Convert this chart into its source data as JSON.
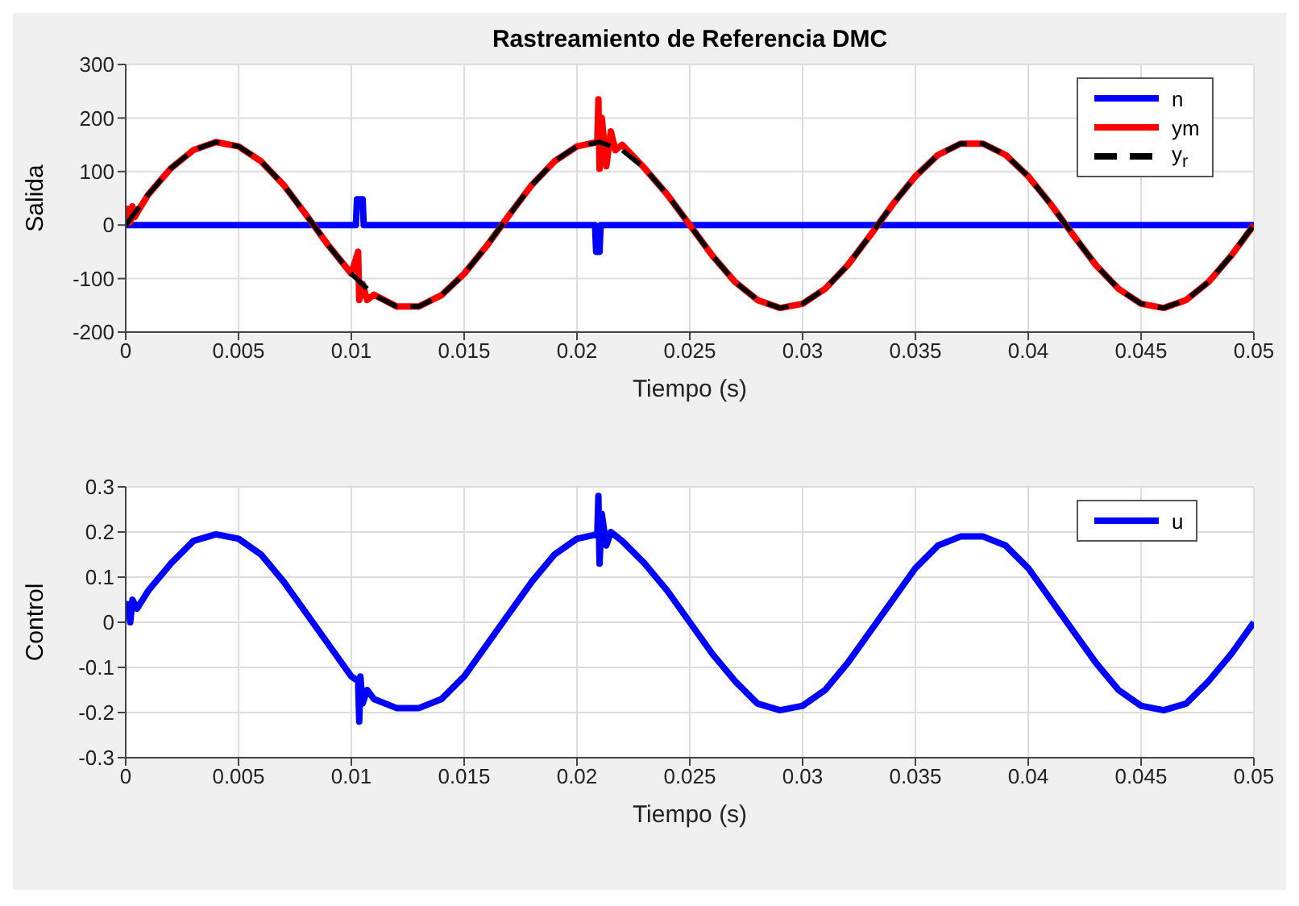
{
  "chart_data": [
    {
      "type": "line",
      "title": "Rastreamiento de Referencia DMC",
      "xlabel": "Tiempo (s)",
      "ylabel": "Salida",
      "xlim": [
        0,
        0.05
      ],
      "xticks": [
        0,
        0.005,
        0.01,
        0.015,
        0.02,
        0.025,
        0.03,
        0.035,
        0.04,
        0.045,
        0.05
      ],
      "ylim": [
        -200,
        300
      ],
      "yticks": [
        -200,
        -100,
        0,
        100,
        200,
        300
      ],
      "grid": true,
      "legend": "top right",
      "marker": "none",
      "series": [
        {
          "name": "n",
          "color": "#0000ff",
          "line_style": "solid",
          "x": [
            0,
            0.0102,
            0.01025,
            0.0105,
            0.01055,
            0.0208,
            0.02085,
            0.021,
            0.02105,
            0.05
          ],
          "values": [
            0,
            0,
            48,
            48,
            0,
            0,
            -50,
            -50,
            0,
            0
          ]
        },
        {
          "name": "ym",
          "color": "#ff0000",
          "line_style": "solid",
          "x": [
            0,
            0.0001,
            0.0002,
            0.0003,
            0.0004,
            0.0006,
            0.001,
            0.002,
            0.003,
            0.004,
            0.005,
            0.006,
            0.007,
            0.008,
            0.009,
            0.01,
            0.0103,
            0.01035,
            0.0105,
            0.0107,
            0.011,
            0.012,
            0.013,
            0.014,
            0.015,
            0.016,
            0.017,
            0.018,
            0.019,
            0.02,
            0.0209,
            0.02095,
            0.021,
            0.0211,
            0.0213,
            0.0215,
            0.0217,
            0.022,
            0.023,
            0.024,
            0.025,
            0.026,
            0.027,
            0.028,
            0.029,
            0.03,
            0.031,
            0.032,
            0.033,
            0.034,
            0.035,
            0.036,
            0.037,
            0.038,
            0.039,
            0.04,
            0.041,
            0.042,
            0.043,
            0.044,
            0.045,
            0.046,
            0.047,
            0.048,
            0.049,
            0.05
          ],
          "values": [
            0,
            30,
            5,
            35,
            15,
            30,
            57,
            106,
            140,
            155,
            147,
            119,
            75,
            19,
            -39,
            -91,
            -50,
            -140,
            -110,
            -140,
            -130,
            -152,
            -152,
            -131,
            -91,
            -39,
            19,
            75,
            119,
            147,
            155,
            235,
            105,
            200,
            110,
            175,
            140,
            150,
            106,
            57,
            0,
            -57,
            -106,
            -140,
            -155,
            -147,
            -119,
            -75,
            -19,
            39,
            91,
            131,
            152,
            152,
            131,
            91,
            39,
            -19,
            -75,
            -119,
            -147,
            -155,
            -140,
            -106,
            -57,
            0
          ]
        },
        {
          "name": "y$_{r}$",
          "color": "#000000",
          "line_style": "dashed",
          "x": [
            0,
            0.001,
            0.002,
            0.003,
            0.004,
            0.005,
            0.006,
            0.007,
            0.008,
            0.009,
            0.01,
            0.011,
            0.012,
            0.013,
            0.014,
            0.015,
            0.016,
            0.017,
            0.018,
            0.019,
            0.02,
            0.021,
            0.022,
            0.023,
            0.024,
            0.025,
            0.026,
            0.027,
            0.028,
            0.029,
            0.03,
            0.031,
            0.032,
            0.033,
            0.034,
            0.035,
            0.036,
            0.037,
            0.038,
            0.039,
            0.04,
            0.041,
            0.042,
            0.043,
            0.044,
            0.045,
            0.046,
            0.047,
            0.048,
            0.049,
            0.05
          ],
          "values": [
            0,
            57,
            106,
            140,
            155,
            147,
            119,
            75,
            19,
            -39,
            -91,
            -131,
            -152,
            -152,
            -131,
            -91,
            -39,
            19,
            75,
            119,
            147,
            155,
            140,
            106,
            57,
            0,
            -57,
            -106,
            -140,
            -155,
            -147,
            -119,
            -75,
            -19,
            39,
            91,
            131,
            152,
            152,
            131,
            91,
            39,
            -19,
            -75,
            -119,
            -147,
            -155,
            -140,
            -106,
            -57,
            0
          ]
        }
      ]
    },
    {
      "type": "line",
      "xlabel": "Tiempo (s)",
      "ylabel": "Control",
      "xlim": [
        0,
        0.05
      ],
      "xticks": [
        0,
        0.005,
        0.01,
        0.015,
        0.02,
        0.025,
        0.03,
        0.035,
        0.04,
        0.045,
        0.05
      ],
      "ylim": [
        -0.3,
        0.3
      ],
      "yticks": [
        -0.3,
        -0.2,
        -0.1,
        0,
        0.1,
        0.2,
        0.3
      ],
      "grid": true,
      "legend": "top right",
      "marker": "none",
      "series": [
        {
          "name": "u",
          "color": "#0000ff",
          "line_style": "solid",
          "x": [
            0,
            0.0001,
            0.0002,
            0.0003,
            0.0005,
            0.001,
            0.002,
            0.003,
            0.004,
            0.005,
            0.006,
            0.007,
            0.008,
            0.009,
            0.01,
            0.0103,
            0.01035,
            0.0104,
            0.0105,
            0.0107,
            0.011,
            0.012,
            0.013,
            0.014,
            0.015,
            0.016,
            0.017,
            0.018,
            0.019,
            0.02,
            0.0209,
            0.02095,
            0.021,
            0.0211,
            0.0213,
            0.0215,
            0.022,
            0.023,
            0.024,
            0.025,
            0.026,
            0.027,
            0.028,
            0.029,
            0.03,
            0.031,
            0.032,
            0.033,
            0.034,
            0.035,
            0.036,
            0.037,
            0.038,
            0.039,
            0.04,
            0.041,
            0.042,
            0.043,
            0.044,
            0.045,
            0.046,
            0.047,
            0.048,
            0.049,
            0.05
          ],
          "values": [
            0.02,
            0.04,
            0,
            0.05,
            0.03,
            0.07,
            0.13,
            0.18,
            0.195,
            0.185,
            0.15,
            0.09,
            0.02,
            -0.05,
            -0.12,
            -0.13,
            -0.22,
            -0.12,
            -0.18,
            -0.15,
            -0.17,
            -0.19,
            -0.19,
            -0.17,
            -0.12,
            -0.05,
            0.02,
            0.09,
            0.15,
            0.185,
            0.195,
            0.28,
            0.13,
            0.24,
            0.17,
            0.2,
            0.18,
            0.13,
            0.07,
            0,
            -0.07,
            -0.13,
            -0.18,
            -0.195,
            -0.185,
            -0.15,
            -0.09,
            -0.02,
            0.05,
            0.12,
            0.17,
            0.19,
            0.19,
            0.17,
            0.12,
            0.05,
            -0.02,
            -0.09,
            -0.15,
            -0.185,
            -0.195,
            -0.18,
            -0.13,
            -0.07,
            0
          ]
        }
      ]
    }
  ]
}
